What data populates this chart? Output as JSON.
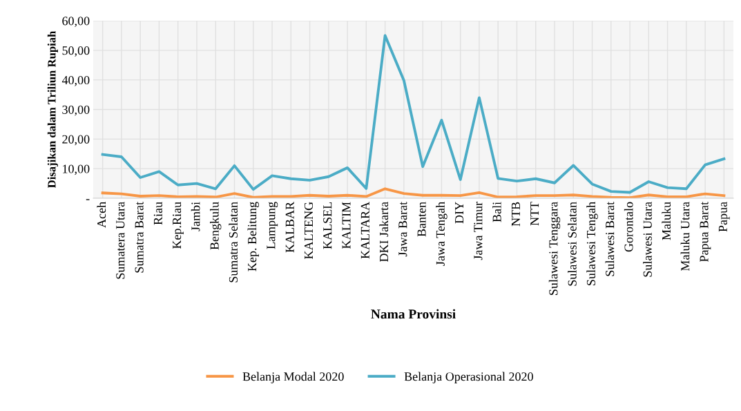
{
  "chart_data": {
    "type": "line",
    "xlabel": "Nama Provinsi",
    "ylabel": "Disajikan dalam Triliun Rupiah",
    "categories": [
      "Aceh",
      "Sumatera Utara",
      "Sumatra Barat",
      "Riau",
      "Kep.Riau",
      "Jambi",
      "Bengkulu",
      "Sumatra Selatan",
      "Kep. Belitung",
      "Lampung",
      "KALBAR",
      "KALTENG",
      "KALSEL",
      "KALTIM",
      "KALTARA",
      "DKI Jakarta",
      "Jawa Barat",
      "Banten",
      "Jawa Tengah",
      "DIY",
      "Jawa Timur",
      "Bali",
      "NTB",
      "NTT",
      "Sulawesi Tenggara",
      "Sulawesi Selatan",
      "Sulawesi Tengah",
      "Sulawesi Barat",
      "Gorontalo",
      "Sulawesi Utara",
      "Maluku",
      "Maluku Utara",
      "Papua Barat",
      "Papua"
    ],
    "series": [
      {
        "name": "Belanja Modal 2020",
        "color": "#f79646",
        "values": [
          1.8,
          1.5,
          0.7,
          0.9,
          0.5,
          0.6,
          0.4,
          1.6,
          0.3,
          0.6,
          0.6,
          1.0,
          0.7,
          1.0,
          0.6,
          3.2,
          1.6,
          1.0,
          1.0,
          0.9,
          1.9,
          0.4,
          0.5,
          0.9,
          0.9,
          1.1,
          0.6,
          0.3,
          0.2,
          1.1,
          0.5,
          0.5,
          1.5,
          0.9
        ]
      },
      {
        "name": "Belanja Operasional 2020",
        "color": "#4bacc6",
        "values": [
          14.8,
          14.0,
          7.0,
          9.0,
          4.5,
          5.0,
          3.2,
          11.0,
          3.0,
          7.6,
          6.6,
          6.1,
          7.3,
          10.3,
          3.3,
          55.0,
          39.8,
          10.7,
          26.4,
          6.3,
          34.0,
          6.7,
          5.8,
          6.6,
          5.2,
          11.1,
          4.8,
          2.3,
          2.0,
          5.6,
          3.6,
          3.2,
          11.3,
          13.3
        ]
      }
    ],
    "ylim": [
      0,
      60
    ],
    "yticks": [
      {
        "value": 0,
        "label": "-"
      },
      {
        "value": 10,
        "label": "10,00"
      },
      {
        "value": 20,
        "label": "20,00"
      },
      {
        "value": 30,
        "label": "30,00"
      },
      {
        "value": 40,
        "label": "40,00"
      },
      {
        "value": 50,
        "label": "50,00"
      },
      {
        "value": 60,
        "label": "60,00"
      }
    ],
    "grid": true,
    "legend": "bottom",
    "marker": "none",
    "line_style": "solid"
  }
}
